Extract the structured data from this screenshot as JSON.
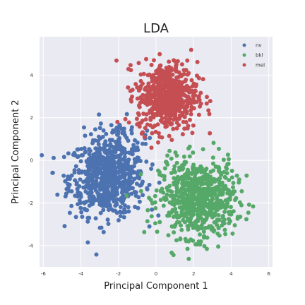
{
  "chart_data": {
    "type": "scatter",
    "title": "LDA",
    "xlabel": "Principal Component 1",
    "ylabel": "Principal Component 2",
    "xlim": [
      -6.2,
      6.2
    ],
    "ylim": [
      -5.0,
      5.8
    ],
    "xticks": [
      -6,
      -4,
      -2,
      0,
      2,
      4,
      6
    ],
    "yticks": [
      -4,
      -2,
      0,
      2,
      4
    ],
    "grid": true,
    "legend_position": "top-right",
    "colors": {
      "background": "#eaeaf2",
      "grid": "#ffffff"
    },
    "series": [
      {
        "name": "nv",
        "color": "#4c72b0",
        "clusters": [
          {
            "center": [
              -2.6,
              -0.8
            ],
            "spread": [
              1.0,
              0.9
            ],
            "count": 700
          },
          {
            "center": [
              -2.0,
              1.0
            ],
            "spread": [
              0.7,
              0.5
            ],
            "count": 60
          }
        ]
      },
      {
        "name": "bkl",
        "color": "#55a868",
        "clusters": [
          {
            "center": [
              2.2,
              -1.8
            ],
            "spread": [
              1.0,
              0.9
            ],
            "count": 700
          }
        ]
      },
      {
        "name": "mel",
        "color": "#c44e52",
        "clusters": [
          {
            "center": [
              0.6,
              3.0
            ],
            "spread": [
              0.8,
              0.8
            ],
            "count": 600
          }
        ]
      }
    ]
  }
}
